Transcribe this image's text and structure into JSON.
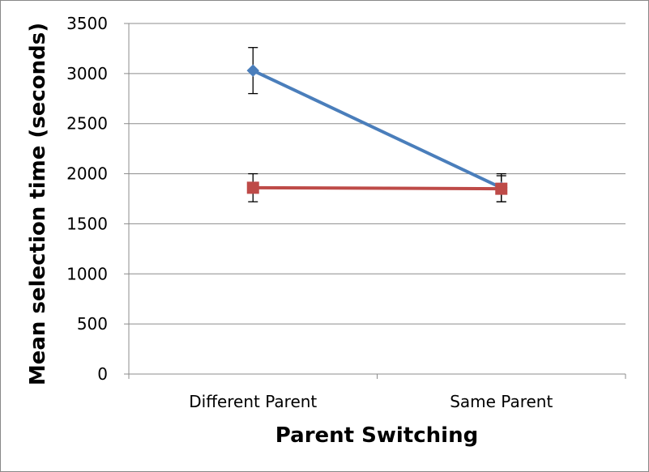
{
  "chart_data": {
    "type": "line",
    "title": "",
    "xlabel": "Parent Switching",
    "ylabel": "Mean selection time (seconds)",
    "categories": [
      "Different Parent",
      "Same Parent"
    ],
    "ylim": [
      0,
      3500
    ],
    "yticks": [
      0,
      500,
      1000,
      1500,
      2000,
      2500,
      3000,
      3500
    ],
    "grid": true,
    "legend": "none",
    "series": [
      {
        "values": [
          3030,
          1860
        ],
        "error": [
          230,
          140
        ],
        "color": "#4a7ebb",
        "marker": "diamond"
      },
      {
        "values": [
          1860,
          1850
        ],
        "error": [
          140,
          130
        ],
        "color": "#be4b48",
        "marker": "square"
      }
    ]
  }
}
